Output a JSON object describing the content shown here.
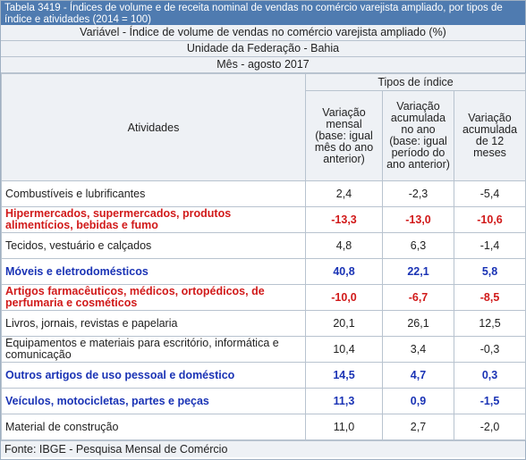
{
  "title": "Tabela 3419 - Índices de volume e de receita nominal de vendas no comércio varejista ampliado, por tipos de índice e atividades (2014 = 100)",
  "meta": {
    "variable": "Variável - Índice de volume de vendas no comércio varejista ampliado (%)",
    "unit": "Unidade da Federação - Bahia",
    "month": "Mês - agosto 2017"
  },
  "headers": {
    "activities": "Atividades",
    "group": "Tipos de índice",
    "col1": "Variação mensal (base: igual mês do ano anterior)",
    "col2": "Variação acumulada no ano (base: igual período do ano anterior)",
    "col3": "Variação acumulada de 12 meses"
  },
  "rows": [
    {
      "activity": "Combustíveis e lubrificantes",
      "v1": "2,4",
      "v2": "-2,3",
      "v3": "-5,4",
      "style": "normal"
    },
    {
      "activity": "Hipermercados, supermercados, produtos alimentícios, bebidas e fumo",
      "v1": "-13,3",
      "v2": "-13,0",
      "v3": "-10,6",
      "style": "red"
    },
    {
      "activity": "Tecidos, vestuário e calçados",
      "v1": "4,8",
      "v2": "6,3",
      "v3": "-1,4",
      "style": "normal"
    },
    {
      "activity": "Móveis e eletrodomésticos",
      "v1": "40,8",
      "v2": "22,1",
      "v3": "5,8",
      "style": "blue"
    },
    {
      "activity": "Artigos farmacêuticos, médicos, ortopédicos, de perfumaria e cosméticos",
      "v1": "-10,0",
      "v2": "-6,7",
      "v3": "-8,5",
      "style": "red"
    },
    {
      "activity": "Livros, jornais, revistas e papelaria",
      "v1": "20,1",
      "v2": "26,1",
      "v3": "12,5",
      "style": "normal"
    },
    {
      "activity": "Equipamentos e materiais para escritório, informática e comunicação",
      "v1": "10,4",
      "v2": "3,4",
      "v3": "-0,3",
      "style": "normal"
    },
    {
      "activity": "Outros artigos de uso pessoal e doméstico",
      "v1": "14,5",
      "v2": "4,7",
      "v3": "0,3",
      "style": "blue"
    },
    {
      "activity": "Veículos, motocicletas, partes e peças",
      "v1": "11,3",
      "v2": "0,9",
      "v3": "-1,5",
      "style": "blue"
    },
    {
      "activity": "Material de construção",
      "v1": "11,0",
      "v2": "2,7",
      "v3": "-2,0",
      "style": "normal"
    }
  ],
  "footer": "Fonte: IBGE - Pesquisa Mensal de Comércio",
  "colors": {
    "red": "#d11a1a",
    "blue": "#1a33b5",
    "title_bg": "#4f7bb0"
  }
}
